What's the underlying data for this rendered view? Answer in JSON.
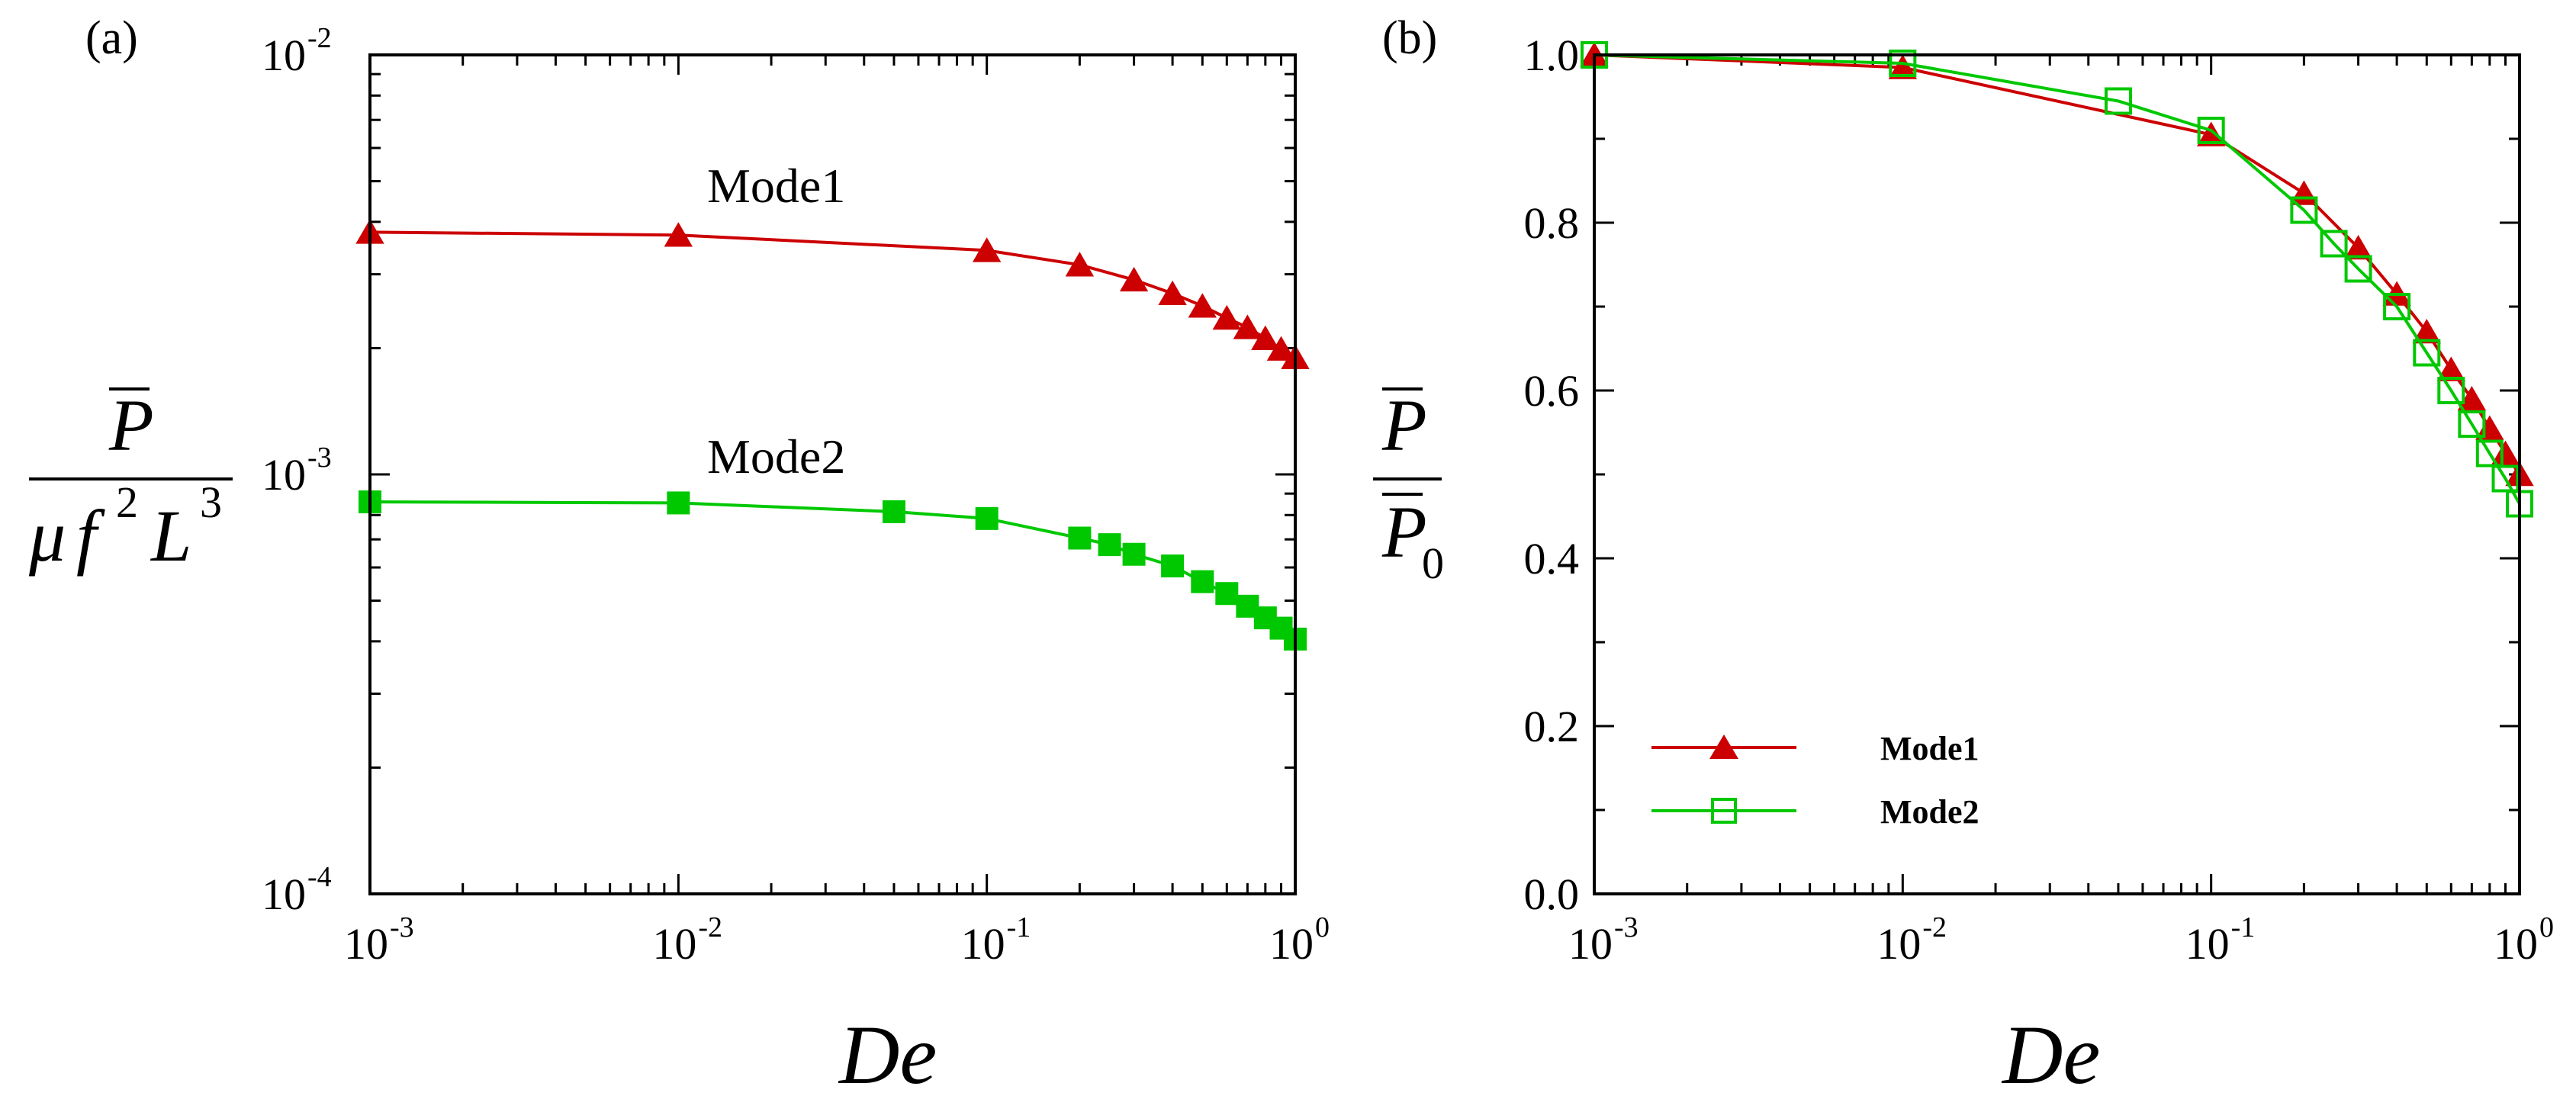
{
  "chart_data": [
    {
      "type": "line",
      "panel_label": "(a)",
      "xscale": "log",
      "yscale": "log",
      "xlim": [
        0.001,
        1
      ],
      "ylim": [
        0.0001,
        0.01
      ],
      "xlabel": "De",
      "ylabel": "P̄ / (μ f² L³)",
      "ylabel_parts": {
        "P": "P",
        "mu": "μ",
        "f": "f",
        "f_exp": "2",
        "L": "L",
        "L_exp": "3"
      },
      "x_ticks": [
        {
          "value": 0.001,
          "base": "10",
          "exp": "-3"
        },
        {
          "value": 0.01,
          "base": "10",
          "exp": "-2"
        },
        {
          "value": 0.1,
          "base": "10",
          "exp": "-1"
        },
        {
          "value": 1,
          "base": "10",
          "exp": "0"
        }
      ],
      "y_ticks": [
        {
          "value": 0.0001,
          "base": "10",
          "exp": "-4"
        },
        {
          "value": 0.001,
          "base": "10",
          "exp": "-3"
        },
        {
          "value": 0.01,
          "base": "10",
          "exp": "-2"
        }
      ],
      "series": [
        {
          "name": "Mode1",
          "color": "#cc0000",
          "marker": "triangle-filled",
          "annotation": "Mode1",
          "x": [
            0.001,
            0.01,
            0.1,
            0.2,
            0.3,
            0.4,
            0.5,
            0.6,
            0.7,
            0.8,
            0.9,
            1.0
          ],
          "y": [
            0.00378,
            0.00372,
            0.00342,
            0.00316,
            0.00291,
            0.0027,
            0.00252,
            0.00236,
            0.00224,
            0.00211,
            0.00199,
            0.0019
          ]
        },
        {
          "name": "Mode2",
          "color": "#00c800",
          "marker": "square-filled",
          "annotation": "Mode2",
          "x": [
            0.001,
            0.01,
            0.05,
            0.1,
            0.2,
            0.25,
            0.3,
            0.4,
            0.5,
            0.6,
            0.7,
            0.8,
            0.9,
            1.0
          ],
          "y": [
            0.00086,
            0.000855,
            0.000815,
            0.000785,
            0.000705,
            0.00068,
            0.000645,
            0.000605,
            0.000555,
            0.00052,
            0.000485,
            0.000455,
            0.00043,
            0.000405
          ]
        }
      ]
    },
    {
      "type": "line",
      "panel_label": "(b)",
      "xscale": "log",
      "yscale": "linear",
      "xlim": [
        0.001,
        1
      ],
      "ylim": [
        0.0,
        1.0
      ],
      "xlabel": "De",
      "ylabel": "P̄ / P̄₀",
      "ylabel_parts": {
        "P": "P",
        "sub": "0"
      },
      "x_ticks": [
        {
          "value": 0.001,
          "base": "10",
          "exp": "-3"
        },
        {
          "value": 0.01,
          "base": "10",
          "exp": "-2"
        },
        {
          "value": 0.1,
          "base": "10",
          "exp": "-1"
        },
        {
          "value": 1,
          "base": "10",
          "exp": "0"
        }
      ],
      "y_ticks": [
        {
          "value": 0.0,
          "label": "0.0"
        },
        {
          "value": 0.2,
          "label": "0.2"
        },
        {
          "value": 0.4,
          "label": "0.4"
        },
        {
          "value": 0.6,
          "label": "0.6"
        },
        {
          "value": 0.8,
          "label": "0.8"
        },
        {
          "value": 1.0,
          "label": "1.0"
        }
      ],
      "legend": {
        "position": "lower-left",
        "entries": [
          "Mode1",
          "Mode2"
        ]
      },
      "series": [
        {
          "name": "Mode1",
          "color": "#cc0000",
          "marker": "triangle-filled",
          "x": [
            0.001,
            0.01,
            0.1,
            0.2,
            0.3,
            0.4,
            0.5,
            0.6,
            0.7,
            0.8,
            0.9,
            1.0
          ],
          "y": [
            1.0,
            0.985,
            0.905,
            0.835,
            0.77,
            0.715,
            0.67,
            0.625,
            0.59,
            0.555,
            0.525,
            0.5
          ]
        },
        {
          "name": "Mode2",
          "color": "#00c800",
          "marker": "square-open",
          "x": [
            0.001,
            0.01,
            0.05,
            0.1,
            0.2,
            0.25,
            0.3,
            0.4,
            0.5,
            0.6,
            0.7,
            0.8,
            0.9,
            1.0
          ],
          "y": [
            1.0,
            0.99,
            0.945,
            0.91,
            0.815,
            0.775,
            0.745,
            0.7,
            0.645,
            0.6,
            0.56,
            0.525,
            0.495,
            0.465
          ]
        }
      ]
    }
  ]
}
